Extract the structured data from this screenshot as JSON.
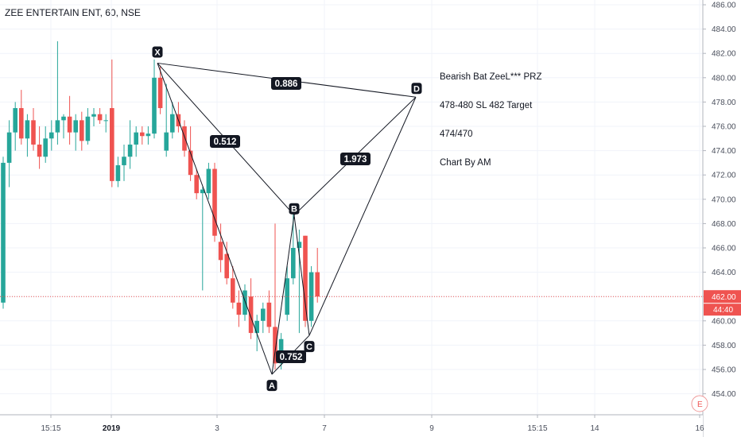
{
  "header": {
    "title": "ZEE ENTERTAIN ENT, 60, NSE"
  },
  "annotation": {
    "lines": [
      "Bearish Bat ZeeL*** PRZ",
      "478-480 SL 482 Target",
      "474/470",
      "Chart By AM"
    ]
  },
  "price_axis": {
    "ticks": [
      "486.00",
      "484.00",
      "482.00",
      "480.00",
      "478.00",
      "476.00",
      "474.00",
      "472.00",
      "470.00",
      "468.00",
      "466.00",
      "464.00",
      "462.00",
      "460.00",
      "458.00",
      "456.00",
      "454.00"
    ],
    "last_price": "462.00",
    "countdown": "44:40"
  },
  "time_axis": {
    "labels": [
      "15:15",
      "2019",
      "3",
      "7",
      "9",
      "15:15",
      "14",
      "16"
    ]
  },
  "colors": {
    "up": "#26a69a",
    "down": "#ef5350",
    "price_line": "#ef5350",
    "pattern": "#131722"
  },
  "chart_data": {
    "type": "candlestick",
    "title": "ZEE ENTERTAIN ENT, 60, NSE",
    "ylim": [
      453,
      486.5
    ],
    "candles": [
      {
        "o": 461.5,
        "h": 473.5,
        "l": 461.0,
        "c": 473.0
      },
      {
        "o": 473.0,
        "h": 476.5,
        "l": 471.0,
        "c": 475.5
      },
      {
        "o": 475.5,
        "h": 478.0,
        "l": 474.0,
        "c": 477.5
      },
      {
        "o": 477.5,
        "h": 479.0,
        "l": 474.5,
        "c": 475.0
      },
      {
        "o": 475.0,
        "h": 477.0,
        "l": 473.5,
        "c": 476.5
      },
      {
        "o": 476.5,
        "h": 477.5,
        "l": 474.0,
        "c": 474.5
      },
      {
        "o": 474.5,
        "h": 476.0,
        "l": 472.5,
        "c": 473.5
      },
      {
        "o": 473.5,
        "h": 476.0,
        "l": 473.0,
        "c": 475.0
      },
      {
        "o": 475.0,
        "h": 476.5,
        "l": 474.0,
        "c": 475.5
      },
      {
        "o": 475.5,
        "h": 483.0,
        "l": 474.5,
        "c": 476.5
      },
      {
        "o": 476.5,
        "h": 477.0,
        "l": 475.0,
        "c": 476.8
      },
      {
        "o": 476.8,
        "h": 478.5,
        "l": 474.5,
        "c": 475.5
      },
      {
        "o": 475.5,
        "h": 477.0,
        "l": 474.0,
        "c": 476.5
      },
      {
        "o": 476.5,
        "h": 477.2,
        "l": 474.0,
        "c": 474.8
      },
      {
        "o": 474.8,
        "h": 477.5,
        "l": 474.5,
        "c": 476.8
      },
      {
        "o": 476.8,
        "h": 477.5,
        "l": 476.0,
        "c": 477.0
      },
      {
        "o": 477.0,
        "h": 477.5,
        "l": 476.2,
        "c": 476.5
      },
      {
        "o": 476.5,
        "h": 477.0,
        "l": 475.5,
        "c": 476.5
      },
      {
        "o": 477.5,
        "h": 481.5,
        "l": 471.0,
        "c": 471.5
      },
      {
        "o": 471.5,
        "h": 473.5,
        "l": 471.0,
        "c": 472.8
      },
      {
        "o": 472.8,
        "h": 474.5,
        "l": 471.5,
        "c": 473.5
      },
      {
        "o": 473.5,
        "h": 476.5,
        "l": 472.5,
        "c": 474.5
      },
      {
        "o": 474.5,
        "h": 476.0,
        "l": 473.5,
        "c": 475.5
      },
      {
        "o": 475.5,
        "h": 476.0,
        "l": 474.5,
        "c": 475.2
      },
      {
        "o": 475.2,
        "h": 476.0,
        "l": 474.5,
        "c": 475.4
      },
      {
        "o": 475.4,
        "h": 481.5,
        "l": 475.0,
        "c": 480.0
      },
      {
        "o": 480.0,
        "h": 481.0,
        "l": 477.0,
        "c": 477.5
      },
      {
        "o": 474.0,
        "h": 479.5,
        "l": 473.5,
        "c": 475.5
      },
      {
        "o": 475.5,
        "h": 478.0,
        "l": 475.0,
        "c": 477.0
      },
      {
        "o": 477.0,
        "h": 478.0,
        "l": 475.5,
        "c": 476.0
      },
      {
        "o": 476.0,
        "h": 476.5,
        "l": 473.5,
        "c": 474.0
      },
      {
        "o": 474.0,
        "h": 476.0,
        "l": 471.5,
        "c": 472.0
      },
      {
        "o": 472.0,
        "h": 472.5,
        "l": 470.0,
        "c": 470.5
      },
      {
        "o": 470.5,
        "h": 471.0,
        "l": 462.5,
        "c": 470.8
      },
      {
        "o": 470.5,
        "h": 473.0,
        "l": 470.0,
        "c": 472.5
      },
      {
        "o": 472.5,
        "h": 473.0,
        "l": 466.5,
        "c": 467.0
      },
      {
        "o": 466.5,
        "h": 468.0,
        "l": 464.0,
        "c": 465.0
      },
      {
        "o": 465.5,
        "h": 466.5,
        "l": 463.0,
        "c": 463.5
      },
      {
        "o": 463.5,
        "h": 464.5,
        "l": 461.0,
        "c": 461.5
      },
      {
        "o": 461.5,
        "h": 462.5,
        "l": 459.5,
        "c": 460.5
      },
      {
        "o": 460.5,
        "h": 463.0,
        "l": 460.0,
        "c": 462.5
      },
      {
        "o": 462.0,
        "h": 463.5,
        "l": 458.5,
        "c": 459.0
      },
      {
        "o": 459.0,
        "h": 460.5,
        "l": 457.5,
        "c": 460.0
      },
      {
        "o": 460.0,
        "h": 461.5,
        "l": 459.0,
        "c": 461.0
      },
      {
        "o": 461.5,
        "h": 462.5,
        "l": 459.0,
        "c": 459.5
      },
      {
        "o": 459.5,
        "h": 468.0,
        "l": 456.0,
        "c": 456.5
      },
      {
        "o": 456.5,
        "h": 459.0,
        "l": 456.0,
        "c": 458.5
      },
      {
        "o": 460.5,
        "h": 464.5,
        "l": 460.0,
        "c": 463.5
      },
      {
        "o": 463.5,
        "h": 469.0,
        "l": 463.0,
        "c": 466.0
      },
      {
        "o": 466.0,
        "h": 467.5,
        "l": 459.0,
        "c": 466.5
      },
      {
        "o": 467.0,
        "h": 467.0,
        "l": 459.5,
        "c": 460.0
      },
      {
        "o": 460.0,
        "h": 464.5,
        "l": 459.5,
        "c": 464.0
      },
      {
        "o": 464.0,
        "h": 466.0,
        "l": 461.5,
        "c": 462.0
      }
    ],
    "harmonic_pattern": {
      "name": "Bearish Bat",
      "points": [
        {
          "label": "X",
          "price": 481.2
        },
        {
          "label": "A",
          "price": 455.6
        },
        {
          "label": "B",
          "price": 468.7
        },
        {
          "label": "C",
          "price": 458.8
        },
        {
          "label": "D",
          "price": 478.4
        }
      ],
      "ratios": [
        {
          "label": "0.512",
          "between": "X-B"
        },
        {
          "label": "0.886",
          "between": "X-D"
        },
        {
          "label": "0.752",
          "between": "A-C"
        },
        {
          "label": "1.973",
          "between": "B-D"
        }
      ]
    },
    "last_price": 462.0
  }
}
